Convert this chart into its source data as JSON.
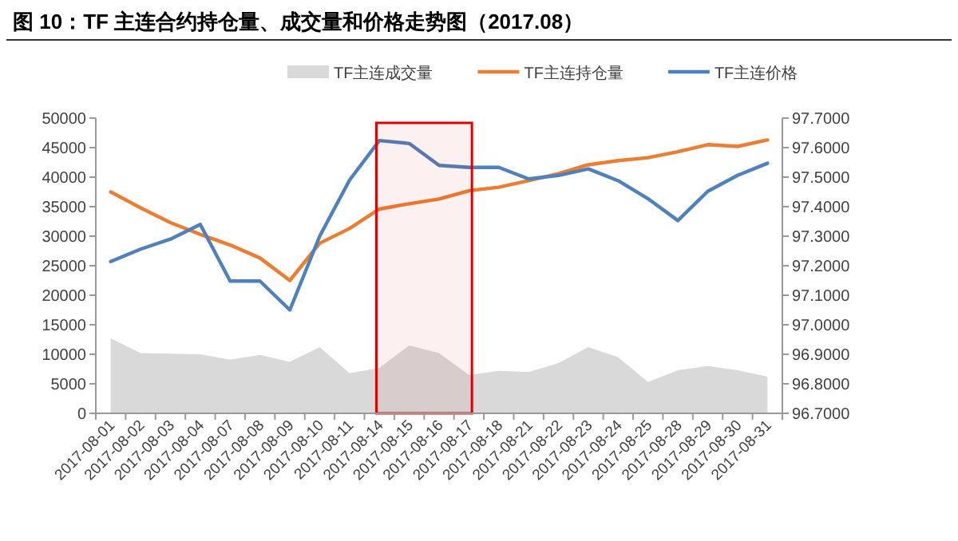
{
  "chart_data": {
    "type": "line",
    "title": "图 10：TF 主连合约持仓量、成交量和价格走势图（2017.08）",
    "categories": [
      "2017-08-01",
      "2017-08-02",
      "2017-08-03",
      "2017-08-04",
      "2017-08-07",
      "2017-08-08",
      "2017-08-09",
      "2017-08-10",
      "2017-08-11",
      "2017-08-14",
      "2017-08-15",
      "2017-08-16",
      "2017-08-17",
      "2017-08-18",
      "2017-08-21",
      "2017-08-22",
      "2017-08-23",
      "2017-08-24",
      "2017-08-25",
      "2017-08-28",
      "2017-08-29",
      "2017-08-30",
      "2017-08-31"
    ],
    "series": [
      {
        "name": "TF主连成交量",
        "type": "area",
        "color": "#d9d9d9",
        "values": [
          12700,
          10200,
          10100,
          10000,
          9100,
          9900,
          8700,
          11200,
          6800,
          7700,
          11500,
          10200,
          6500,
          7200,
          7000,
          8500,
          11200,
          9500,
          5300,
          7300,
          8000,
          7300,
          6200
        ]
      },
      {
        "name": "TF主连持仓量",
        "color": "#ed7d31",
        "values": [
          37500,
          34800,
          32300,
          30300,
          28500,
          26300,
          22500,
          28800,
          31300,
          34600,
          35500,
          36300,
          37700,
          38300,
          39400,
          40600,
          42100,
          42800,
          43300,
          44300,
          45500,
          45200,
          46300
        ]
      },
      {
        "name": "TF主连价格",
        "color": "#4f81bd",
        "axis": "y2",
        "values": [
          97.214,
          97.256,
          97.29,
          97.34,
          97.148,
          97.148,
          97.05,
          97.3,
          97.49,
          97.624,
          97.614,
          97.54,
          97.533,
          97.533,
          97.494,
          97.506,
          97.528,
          97.488,
          97.427,
          97.353,
          97.452,
          97.506,
          97.547
        ]
      }
    ],
    "ylim": [
      0,
      50000
    ],
    "yticks": [
      0,
      5000,
      10000,
      15000,
      20000,
      25000,
      30000,
      35000,
      40000,
      45000,
      50000
    ],
    "y2lim": [
      96.7,
      97.7
    ],
    "y2ticks": [
      {
        "value": 96.7,
        "label": "96.7000"
      },
      {
        "value": 96.8,
        "label": "96.8000"
      },
      {
        "value": 96.9,
        "label": "96.9000"
      },
      {
        "value": 97.0,
        "label": "97.0000"
      },
      {
        "value": 97.1,
        "label": "97.1000"
      },
      {
        "value": 97.2,
        "label": "97.2000"
      },
      {
        "value": 97.3,
        "label": "97.3000"
      },
      {
        "value": 97.4,
        "label": "97.4000"
      },
      {
        "value": 97.5,
        "label": "97.5000"
      },
      {
        "value": 97.6,
        "label": "97.6000"
      },
      {
        "value": 97.7,
        "label": "97.7000"
      }
    ],
    "bands": [
      {
        "axis": "x",
        "from": "2017-08-14",
        "to": "2017-08-17",
        "color": "#e00000"
      }
    ],
    "legend": "top",
    "grid": false
  }
}
